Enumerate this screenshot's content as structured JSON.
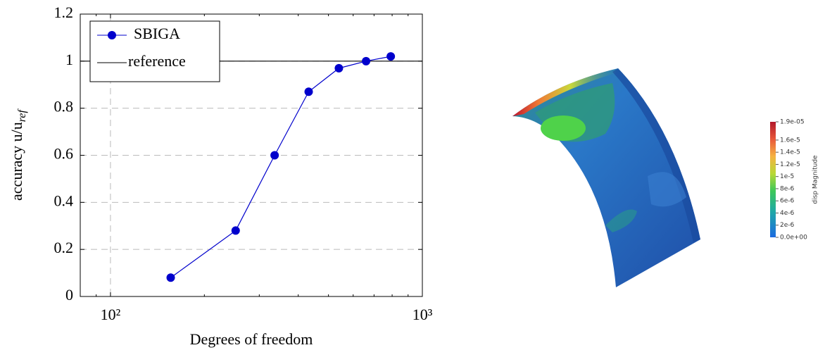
{
  "chart_data": {
    "type": "line",
    "xscale": "log",
    "grid": true,
    "legend": "upper left",
    "xlabel": "Degrees of freedom",
    "ylabel": "accuracy u/u",
    "ylabel_subscript": "ref",
    "x": [
      156,
      252,
      336,
      432,
      540,
      660,
      792
    ],
    "series": [
      {
        "name": "SBIGA",
        "color": "#0000cc",
        "values": [
          0.08,
          0.28,
          0.6,
          0.87,
          0.97,
          1.0,
          1.02
        ]
      }
    ],
    "reference": {
      "name": "reference",
      "value": 1,
      "color": "#000000"
    },
    "xlim": [
      80,
      1000
    ],
    "ylim": [
      0,
      1.2
    ],
    "xticks": [
      {
        "value": 100,
        "label": "10²"
      },
      {
        "value": 1000,
        "label": "10³"
      }
    ],
    "xminorticks": [
      90,
      200,
      300,
      400,
      500,
      600,
      700,
      800,
      900
    ],
    "yticks": [
      0,
      0.2,
      0.4,
      0.6,
      0.8,
      1,
      1.2
    ]
  },
  "colorbar": {
    "title": "disp Magnitude",
    "range": [
      0,
      1.9e-05
    ],
    "ticks": [
      {
        "value": 1.9e-05,
        "label": "1.9e-05"
      },
      {
        "value": 1.6e-05,
        "label": "1.6e-5"
      },
      {
        "value": 1.4e-05,
        "label": "1.4e-5"
      },
      {
        "value": 1.2e-05,
        "label": "1.2e-5"
      },
      {
        "value": 1e-05,
        "label": "1e-5"
      },
      {
        "value": 8e-06,
        "label": "8e-6"
      },
      {
        "value": 6e-06,
        "label": "6e-6"
      },
      {
        "value": 4e-06,
        "label": "4e-6"
      },
      {
        "value": 2e-06,
        "label": "2e-6"
      },
      {
        "value": 0,
        "label": "0.0e+00"
      }
    ]
  }
}
